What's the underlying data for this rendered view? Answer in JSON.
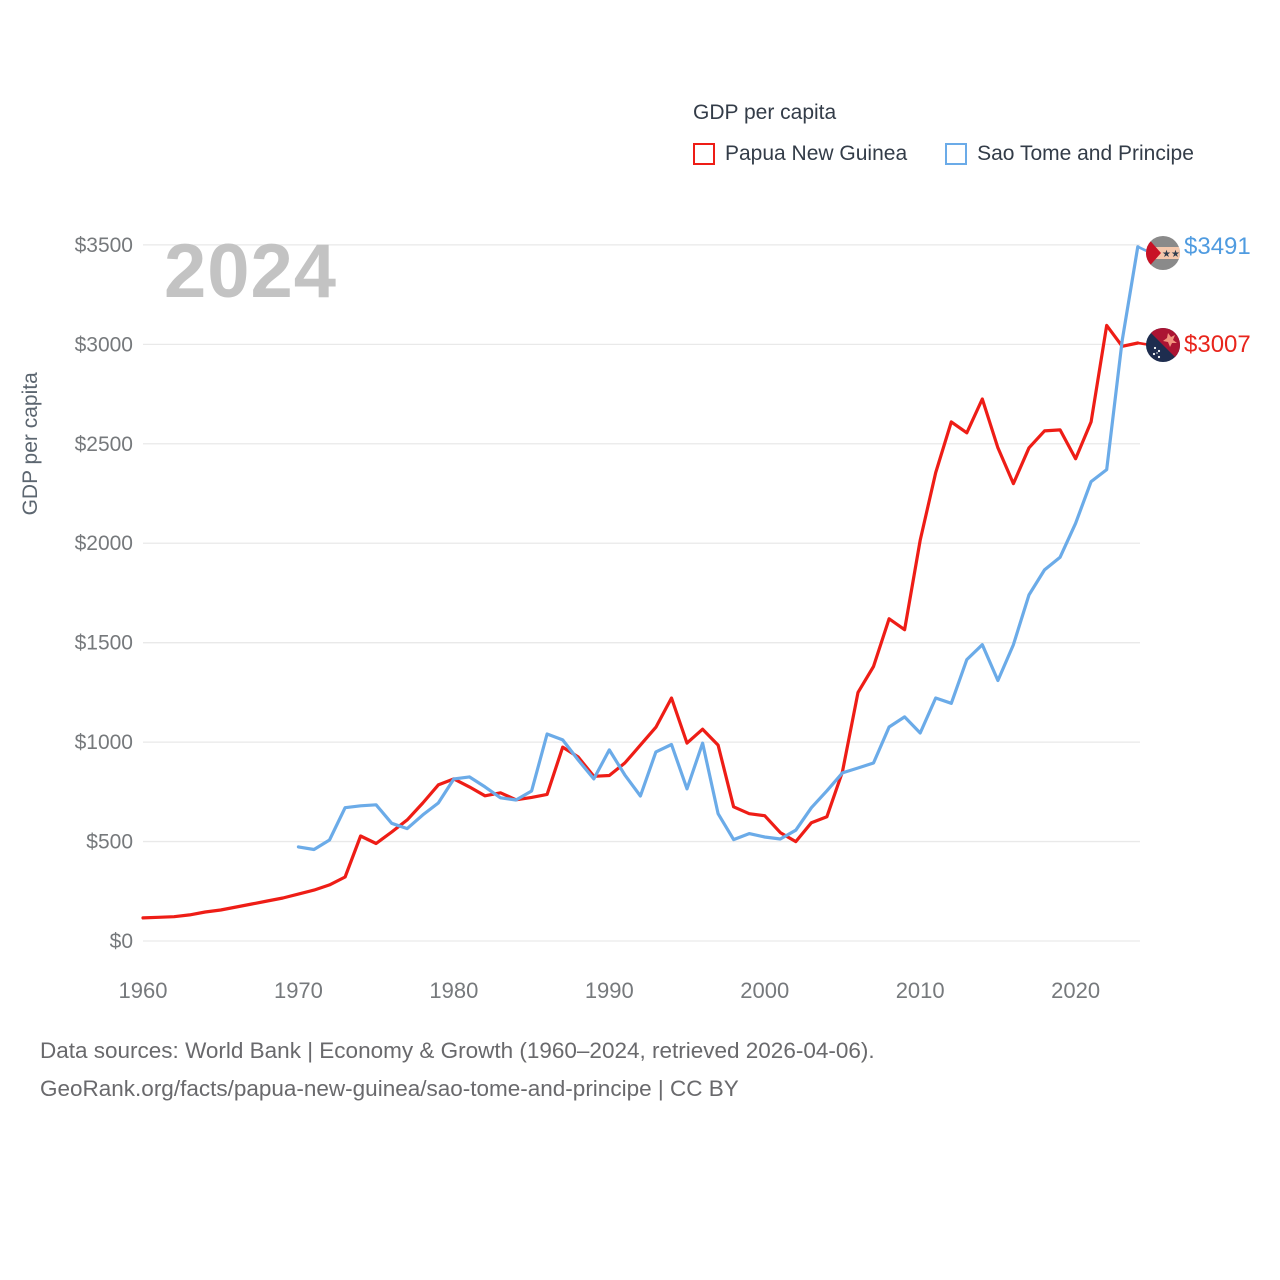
{
  "legend": {
    "title": "GDP per capita",
    "series": [
      {
        "label": "Papua New Guinea",
        "color": "#ee1d16"
      },
      {
        "label": "Sao Tome and Principe",
        "color": "#6babe8"
      }
    ]
  },
  "watermark": "2024",
  "y_axis": {
    "title": "GDP per capita",
    "ticks": [
      0,
      500,
      1000,
      1500,
      2000,
      2500,
      3000,
      3500
    ],
    "tick_labels": [
      "$0",
      "$500",
      "$1000",
      "$1500",
      "$2000",
      "$2500",
      "$3000",
      "$3500"
    ]
  },
  "x_axis": {
    "ticks": [
      1960,
      1970,
      1980,
      1990,
      2000,
      2010,
      2020
    ],
    "tick_labels": [
      "1960",
      "1970",
      "1980",
      "1990",
      "2000",
      "2010",
      "2020"
    ]
  },
  "end_labels": [
    {
      "series": "Sao Tome and Principe",
      "text": "$3491",
      "color": "#4f9be0"
    },
    {
      "series": "Papua New Guinea",
      "text": "$3007",
      "color": "#e8251c"
    }
  ],
  "footer": {
    "line1": "Data sources: World Bank | Economy & Growth (1960–2024, retrieved 2026-04-06).",
    "line2": "GeoRank.org/facts/papua-new-guinea/sao-tome-and-principe | CC BY"
  },
  "chart_data": {
    "type": "line",
    "title": "GDP per capita",
    "ylabel": "GDP per capita",
    "xlim": [
      1960,
      2024
    ],
    "ylim": [
      0,
      3500
    ],
    "grid": true,
    "legend_position": "top-right",
    "series": [
      {
        "name": "Papua New Guinea",
        "color": "#ee1d16",
        "start_year": 1960,
        "end_value": 3007,
        "values": [
          116,
          119,
          122,
          131,
          146,
          156,
          171,
          186,
          201,
          216,
          236,
          256,
          282,
          322,
          528,
          490,
          548,
          609,
          694,
          785,
          815,
          775,
          730,
          745,
          710,
          722,
          737,
          975,
          925,
          828,
          832,
          895,
          985,
          1075,
          1222,
          995,
          1065,
          985,
          675,
          640,
          630,
          545,
          500,
          595,
          625,
          850,
          1250,
          1380,
          1620,
          1565,
          2015,
          2355,
          2610,
          2555,
          2725,
          2480,
          2300,
          2480,
          2565,
          2570,
          2425,
          2610,
          3095,
          2990,
          3007
        ]
      },
      {
        "name": "Sao Tome and Principe",
        "color": "#6babe8",
        "start_year": 1970,
        "end_value": 3491,
        "values": [
          473,
          460,
          508,
          670,
          680,
          685,
          592,
          565,
          634,
          694,
          815,
          825,
          775,
          720,
          709,
          754,
          1041,
          1011,
          910,
          815,
          961,
          835,
          729,
          951,
          988,
          765,
          995,
          640,
          510,
          540,
          523,
          513,
          557,
          670,
          755,
          845,
          870,
          895,
          1076,
          1127,
          1046,
          1222,
          1195,
          1415,
          1490,
          1310,
          1490,
          1740,
          1866,
          1930,
          2100,
          2310,
          2370,
          3020,
          3491
        ]
      }
    ]
  }
}
